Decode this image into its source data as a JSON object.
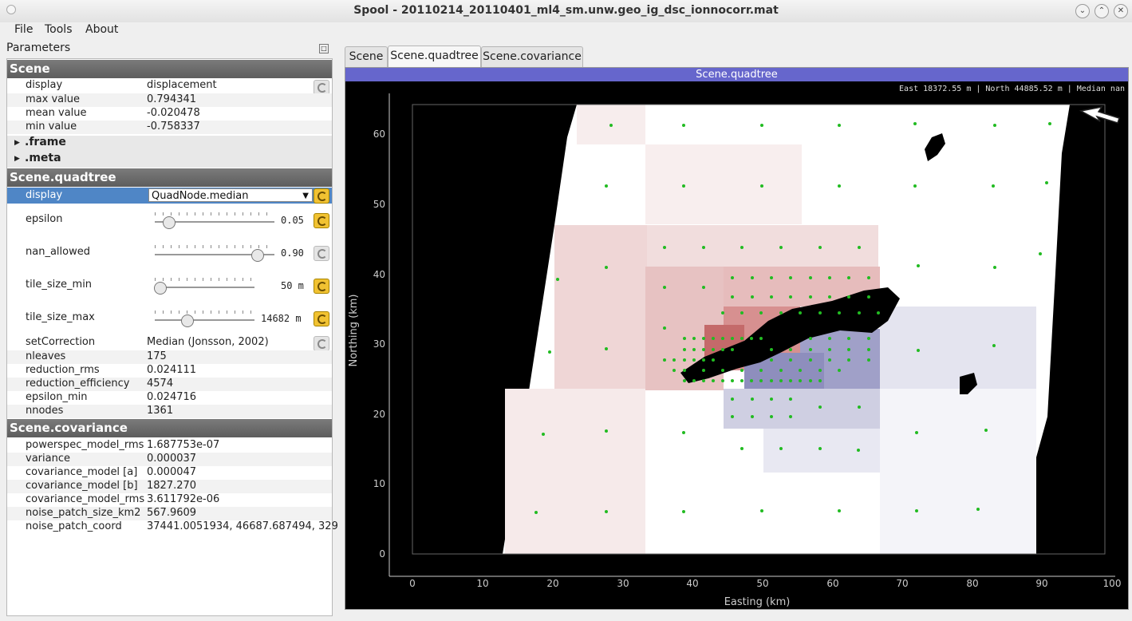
{
  "window": {
    "title": "Spool - 20110214_20110401_ml4_sm.unw.geo_ig_dsc_ionnocorr.mat"
  },
  "menu": {
    "file": "File",
    "tools": "Tools",
    "about": "About"
  },
  "params_title": "Parameters",
  "scene": {
    "header": "Scene",
    "rows": [
      {
        "key": "display",
        "value": "displacement"
      },
      {
        "key": "max value",
        "value": "0.794341"
      },
      {
        "key": "mean value",
        "value": "-0.020478"
      },
      {
        "key": "min value",
        "value": "-0.758337"
      }
    ],
    "groups": [
      ".frame",
      ".meta"
    ]
  },
  "quadtree": {
    "header": "Scene.quadtree",
    "display_key": "display",
    "display_value": "QuadNode.median",
    "sliders": [
      {
        "key": "epsilon",
        "value": "0.05",
        "level": 0.11
      },
      {
        "key": "nan_allowed",
        "value": "0.90",
        "level": 0.85
      },
      {
        "key": "tile_size_min",
        "value": "50 m",
        "level": 0.05
      },
      {
        "key": "tile_size_max",
        "value": "14682 m",
        "level": 0.32
      }
    ],
    "rows": [
      {
        "key": "setCorrection",
        "value": "Median (Jonsson, 2002)"
      },
      {
        "key": "nleaves",
        "value": "175"
      },
      {
        "key": "reduction_rms",
        "value": "0.024111"
      },
      {
        "key": "reduction_efficiency",
        "value": "4574"
      },
      {
        "key": "epsilon_min",
        "value": "0.024716"
      },
      {
        "key": "nnodes",
        "value": "1361"
      }
    ]
  },
  "covariance": {
    "header": "Scene.covariance",
    "rows": [
      {
        "key": "powerspec_model_rms",
        "value": "1.687753e-07"
      },
      {
        "key": "variance",
        "value": "0.000037"
      },
      {
        "key": "covariance_model [a]",
        "value": "0.000047"
      },
      {
        "key": "covariance_model [b]",
        "value": "1827.270"
      },
      {
        "key": "covariance_model_rms",
        "value": "3.611792e-06"
      },
      {
        "key": "noise_patch_size_km2",
        "value": "567.9609"
      },
      {
        "key": "noise_patch_coord",
        "value": "37441.0051934, 46687.687494, 329"
      }
    ]
  },
  "tabs": [
    "Scene",
    "Scene.quadtree",
    "Scene.covariance"
  ],
  "plot": {
    "banner": "Scene.quadtree",
    "coord_readout": "East 18372.55 m | North 44885.52 m | Median nan",
    "xlabel": "Easting (km)",
    "ylabel": "Northing (km)",
    "xticks": [
      "0",
      "10",
      "20",
      "30",
      "40",
      "50",
      "60",
      "70",
      "80",
      "90",
      "100"
    ],
    "yticks": [
      "0",
      "10",
      "20",
      "30",
      "40",
      "50",
      "60"
    ]
  }
}
